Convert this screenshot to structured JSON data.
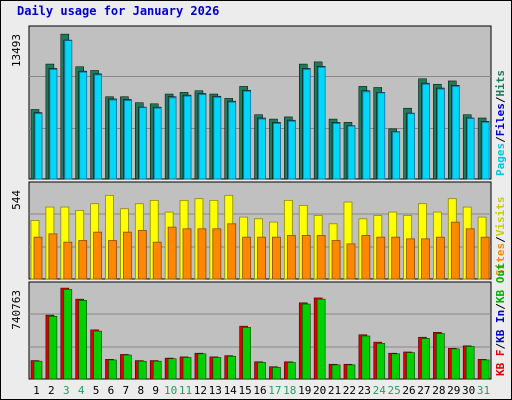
{
  "title": "Daily usage for January 2026",
  "colors": {
    "pages": "#00d8f8",
    "pages_dark": "#1a6fa8",
    "files": "#1f7a5a",
    "hits": "#1f7a5a",
    "visits": "#ffff00",
    "visits_dark": "#8a8a00",
    "sites": "#ff8800",
    "sites_dark": "#8a4a00",
    "kb_out": "#e00000",
    "kb_in": "#00d000",
    "panel_bg": "#c0c0c0",
    "weekend_label": "#20a060"
  },
  "chart_data": [
    {
      "type": "bar",
      "panel": "hits-files-pages",
      "title": "",
      "ymax_label": "13493",
      "ylim": [
        0,
        13493
      ],
      "legend": [
        {
          "label": "Pages",
          "color": "#00c8e0"
        },
        {
          "label": "/",
          "color": "#000000"
        },
        {
          "label": "Files",
          "color": "#0000cc"
        },
        {
          "label": "/",
          "color": "#000000"
        },
        {
          "label": "Hits",
          "color": "#1f7a5a"
        }
      ],
      "categories": [
        "1",
        "2",
        "3",
        "4",
        "5",
        "6",
        "7",
        "8",
        "9",
        "10",
        "11",
        "12",
        "13",
        "14",
        "15",
        "16",
        "17",
        "18",
        "19",
        "20",
        "21",
        "22",
        "23",
        "24",
        "25",
        "26",
        "27",
        "28",
        "29",
        "30",
        "31"
      ],
      "series": [
        {
          "name": "Hits",
          "values": [
            6380,
            10550,
            13300,
            10300,
            9960,
            7550,
            7550,
            7000,
            6900,
            7800,
            7950,
            8100,
            7800,
            7400,
            8500,
            5900,
            5500,
            5700,
            10550,
            10750,
            5500,
            5200,
            8500,
            8400,
            4600,
            6500,
            9200,
            8700,
            9000,
            5900,
            5600
          ]
        },
        {
          "name": "Files",
          "values": [
            6100,
            10150,
            12750,
            9900,
            9650,
            7350,
            7300,
            6600,
            6600,
            7550,
            7700,
            7850,
            7600,
            7150,
            8150,
            5600,
            5200,
            5400,
            10150,
            10350,
            5200,
            4900,
            8100,
            7950,
            4350,
            6050,
            8800,
            8350,
            8600,
            5600,
            5300
          ]
        },
        {
          "name": "Pages",
          "values": [
            6000,
            10050,
            12700,
            9800,
            9550,
            7250,
            7200,
            6550,
            6500,
            7450,
            7600,
            7750,
            7500,
            7050,
            8050,
            5500,
            5100,
            5300,
            10050,
            10250,
            5100,
            4850,
            8000,
            7900,
            4300,
            6000,
            8700,
            8250,
            8500,
            5550,
            5200
          ]
        }
      ]
    },
    {
      "type": "bar",
      "panel": "visits-sites",
      "title": "",
      "ymax_label": "544",
      "ylim": [
        0,
        544
      ],
      "legend": [
        {
          "label": "Sites",
          "color": "#ff8800"
        },
        {
          "label": "/",
          "color": "#000000"
        },
        {
          "label": "Visits",
          "color": "#cccc00"
        }
      ],
      "categories": [
        "1",
        "2",
        "3",
        "4",
        "5",
        "6",
        "7",
        "8",
        "9",
        "10",
        "11",
        "12",
        "13",
        "14",
        "15",
        "16",
        "17",
        "18",
        "19",
        "20",
        "21",
        "22",
        "23",
        "24",
        "25",
        "26",
        "27",
        "28",
        "29",
        "30",
        "31"
      ],
      "series": [
        {
          "name": "Visits",
          "values": [
            350,
            430,
            430,
            410,
            450,
            500,
            420,
            450,
            470,
            400,
            470,
            480,
            470,
            500,
            370,
            360,
            340,
            470,
            440,
            380,
            330,
            460,
            360,
            380,
            400,
            380,
            450,
            400,
            480,
            430,
            370
          ]
        },
        {
          "name": "Sites",
          "values": [
            250,
            270,
            220,
            230,
            280,
            230,
            280,
            290,
            220,
            310,
            300,
            300,
            300,
            330,
            250,
            250,
            250,
            260,
            260,
            260,
            230,
            210,
            260,
            250,
            250,
            240,
            240,
            250,
            340,
            300,
            250
          ]
        }
      ]
    },
    {
      "type": "bar",
      "panel": "kb",
      "title": "",
      "ymax_label": "740763",
      "ylim": [
        0,
        740763
      ],
      "legend": [
        {
          "label": "KB F",
          "color": "#e00000"
        },
        {
          "label": "/",
          "color": "#000000"
        },
        {
          "label": "KB In",
          "color": "#0000cc"
        },
        {
          "label": "/",
          "color": "#000000"
        },
        {
          "label": "KB Out",
          "color": "#00b000"
        }
      ],
      "categories": [
        "1",
        "2",
        "3",
        "4",
        "5",
        "6",
        "7",
        "8",
        "9",
        "10",
        "11",
        "12",
        "13",
        "14",
        "15",
        "16",
        "17",
        "18",
        "19",
        "20",
        "21",
        "22",
        "23",
        "24",
        "25",
        "26",
        "27",
        "28",
        "29",
        "30",
        "31"
      ],
      "series": [
        {
          "name": "KB F",
          "values": [
            150000,
            520000,
            740000,
            650000,
            400000,
            160000,
            200000,
            150000,
            150000,
            170000,
            180000,
            210000,
            180000,
            190000,
            430000,
            140000,
            100000,
            140000,
            620000,
            660000,
            120000,
            120000,
            360000,
            300000,
            210000,
            220000,
            340000,
            380000,
            250000,
            270000,
            160000
          ]
        },
        {
          "name": "KB Out",
          "values": [
            145000,
            510000,
            730000,
            640000,
            390000,
            155000,
            195000,
            145000,
            145000,
            165000,
            175000,
            205000,
            175000,
            185000,
            420000,
            135000,
            95000,
            135000,
            610000,
            650000,
            115000,
            115000,
            350000,
            290000,
            205000,
            215000,
            330000,
            370000,
            245000,
            265000,
            155000
          ]
        }
      ]
    }
  ],
  "x_labels": [
    {
      "text": "1",
      "weekend": false
    },
    {
      "text": "2",
      "weekend": false
    },
    {
      "text": "3",
      "weekend": true
    },
    {
      "text": "4",
      "weekend": true
    },
    {
      "text": "5",
      "weekend": false
    },
    {
      "text": "6",
      "weekend": false
    },
    {
      "text": "7",
      "weekend": false
    },
    {
      "text": "8",
      "weekend": false
    },
    {
      "text": "9",
      "weekend": false
    },
    {
      "text": "10",
      "weekend": true
    },
    {
      "text": "11",
      "weekend": true
    },
    {
      "text": "12",
      "weekend": false
    },
    {
      "text": "13",
      "weekend": false
    },
    {
      "text": "14",
      "weekend": false
    },
    {
      "text": "15",
      "weekend": false
    },
    {
      "text": "16",
      "weekend": false
    },
    {
      "text": "17",
      "weekend": true
    },
    {
      "text": "18",
      "weekend": true
    },
    {
      "text": "19",
      "weekend": false
    },
    {
      "text": "20",
      "weekend": false
    },
    {
      "text": "21",
      "weekend": false
    },
    {
      "text": "22",
      "weekend": false
    },
    {
      "text": "23",
      "weekend": false
    },
    {
      "text": "24",
      "weekend": true
    },
    {
      "text": "25",
      "weekend": true
    },
    {
      "text": "26",
      "weekend": false
    },
    {
      "text": "27",
      "weekend": false
    },
    {
      "text": "28",
      "weekend": false
    },
    {
      "text": "29",
      "weekend": false
    },
    {
      "text": "30",
      "weekend": false
    },
    {
      "text": "31",
      "weekend": true
    }
  ]
}
